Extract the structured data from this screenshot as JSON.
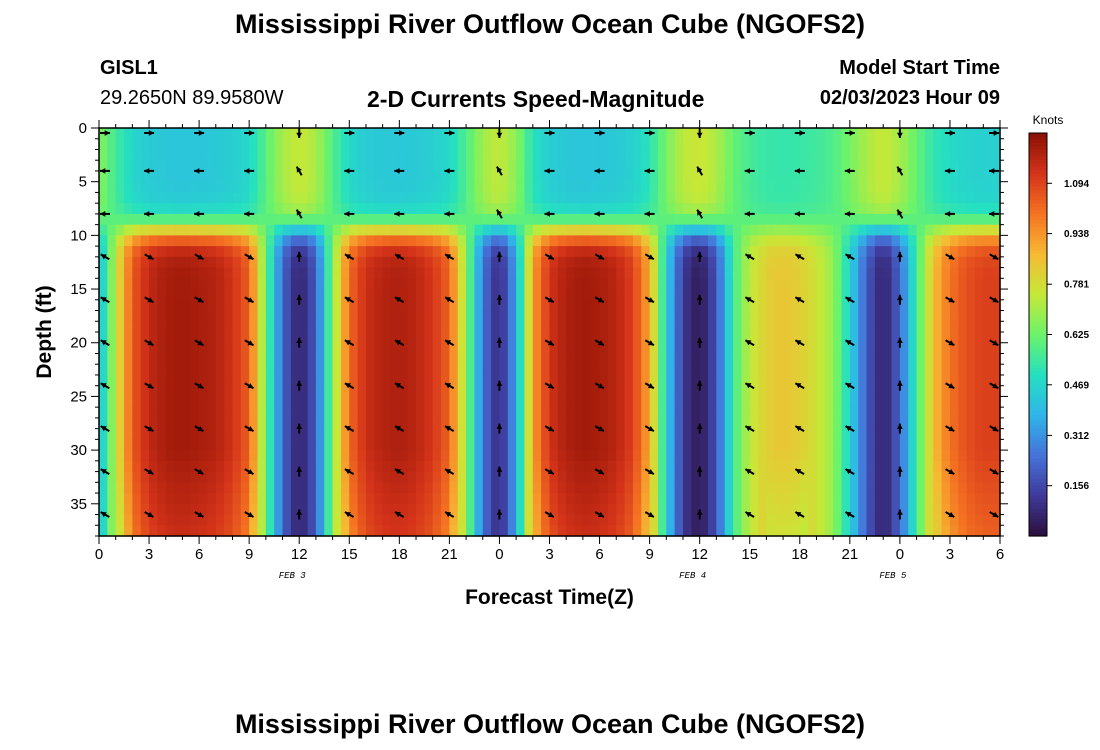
{
  "titles": {
    "main": "Mississippi River Outflow Ocean Cube (NGOFS2)",
    "chart": "2-D Currents Speed-Magnitude",
    "bottom_repeat": "Mississippi River Outflow Ocean Cube (NGOFS2)"
  },
  "station": {
    "id": "GISL1",
    "location": "29.2650N  89.9580W"
  },
  "model": {
    "start_label": "Model Start Time",
    "start_value": "02/03/2023 Hour 09"
  },
  "colors": {
    "palette": [
      "#2b0f3b",
      "#3e3a9a",
      "#4673d9",
      "#2fb5e9",
      "#25e0c0",
      "#6cf36a",
      "#c6e837",
      "#f6b933",
      "#f57222",
      "#d4331a",
      "#8a1004"
    ]
  },
  "chart_data": {
    "type": "heatmap",
    "xlabel": "Forecast Time(Z)",
    "ylabel": "Depth (ft)",
    "x_tick_labels": [
      "0",
      "3",
      "6",
      "9",
      "12",
      "15",
      "18",
      "21",
      "0",
      "3",
      "6",
      "9",
      "12",
      "15",
      "18",
      "21",
      "0",
      "3",
      "6"
    ],
    "x_range_hours": [
      0,
      54
    ],
    "date_labels": [
      {
        "text": "FEB 3",
        "at_hour": 12
      },
      {
        "text": "FEB 4",
        "at_hour": 36
      },
      {
        "text": "FEB 5",
        "at_hour": 48
      }
    ],
    "y_tick_labels": [
      "0",
      "5",
      "10",
      "15",
      "20",
      "25",
      "30",
      "35"
    ],
    "y_range_ft": [
      0,
      38
    ],
    "y_inverted": true,
    "colorbar": {
      "label": "Knots",
      "tick_labels": [
        "1.094",
        "0.938",
        "0.781",
        "0.625",
        "0.469",
        "0.312",
        "0.156"
      ],
      "range": [
        0.0,
        1.25
      ]
    },
    "deep_layer_speed_by_hour": [
      [
        0,
        0.38
      ],
      [
        1,
        0.75
      ],
      [
        2,
        1.05
      ],
      [
        3,
        1.16
      ],
      [
        4,
        1.2
      ],
      [
        5,
        1.21
      ],
      [
        6,
        1.2
      ],
      [
        7,
        1.18
      ],
      [
        8,
        1.13
      ],
      [
        9,
        1.04
      ],
      [
        10,
        0.62
      ],
      [
        11,
        0.22
      ],
      [
        12,
        0.05
      ],
      [
        13,
        0.2
      ],
      [
        14,
        0.66
      ],
      [
        15,
        1.02
      ],
      [
        16,
        1.14
      ],
      [
        17,
        1.18
      ],
      [
        18,
        1.19
      ],
      [
        19,
        1.17
      ],
      [
        20,
        1.12
      ],
      [
        21,
        1.03
      ],
      [
        22,
        0.68
      ],
      [
        23,
        0.25
      ],
      [
        24,
        0.07
      ],
      [
        25,
        0.35
      ],
      [
        26,
        0.92
      ],
      [
        27,
        1.13
      ],
      [
        28,
        1.19
      ],
      [
        29,
        1.21
      ],
      [
        30,
        1.2
      ],
      [
        31,
        1.17
      ],
      [
        32,
        1.1
      ],
      [
        33,
        0.9
      ],
      [
        34,
        0.45
      ],
      [
        35,
        0.12
      ],
      [
        36,
        0.03
      ],
      [
        37,
        0.18
      ],
      [
        38,
        0.55
      ],
      [
        39,
        0.74
      ],
      [
        40,
        0.82
      ],
      [
        41,
        0.84
      ],
      [
        42,
        0.82
      ],
      [
        43,
        0.77
      ],
      [
        44,
        0.68
      ],
      [
        45,
        0.46
      ],
      [
        46,
        0.2
      ],
      [
        47,
        0.05
      ],
      [
        48,
        0.22
      ],
      [
        49,
        0.55
      ],
      [
        50,
        0.86
      ],
      [
        51,
        1.0
      ],
      [
        52,
        1.07
      ],
      [
        53,
        1.1
      ],
      [
        54,
        1.1
      ]
    ],
    "surface_layer_note": "depths 0-9 ft show weaker speeds (0.3-0.9 kn); arrows mostly toward east at 0 ft, west at 4-8 ft"
  }
}
